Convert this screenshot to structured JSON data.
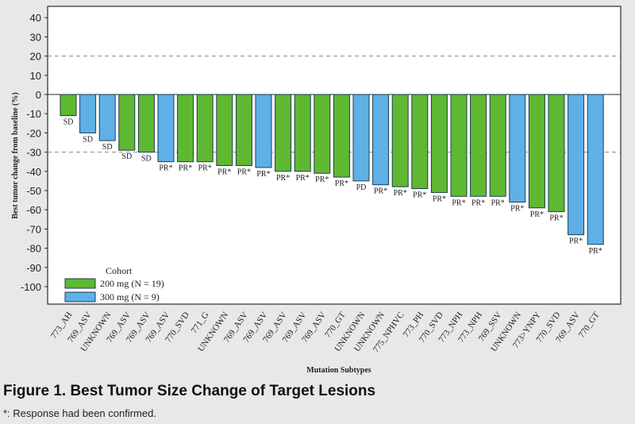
{
  "figure": {
    "title": "Figure 1. Best Tumor Size Change of Target Lesions",
    "note": "*: Response had been confirmed."
  },
  "chart_data": {
    "type": "bar",
    "title": "",
    "xlabel": "Mutation Subtypes",
    "ylabel": "Best tumor change from baseline (%)",
    "ylim": [
      -100,
      40
    ],
    "yticks": [
      40,
      30,
      20,
      10,
      0,
      -10,
      -20,
      -30,
      -40,
      -50,
      -60,
      -70,
      -80,
      -90,
      -100
    ],
    "reference_lines": [
      20,
      -30
    ],
    "grid": false,
    "legend": {
      "title": "Cohort",
      "placement": "bottom-left",
      "entries": [
        {
          "label": "200 mg (N = 19)",
          "color": "#5fb832"
        },
        {
          "label": "300 mg (N = 9)",
          "color": "#5eb0e6"
        }
      ]
    },
    "categories": [
      "773_AH",
      "769_ASV",
      "UNKNOWN",
      "769_ASV",
      "769_ASV",
      "769_ASV",
      "770_SVD",
      "771_G",
      "UNKNOWN",
      "769_ASV",
      "769_ASV",
      "769_ASV",
      "769_ASV",
      "769_ASV",
      "770_GT",
      "UNKNOWN",
      "UNKNOWN",
      "775_NPHVC",
      "773_PH",
      "770_SVD",
      "773_NPH",
      "773_NPH",
      "769_SSV",
      "UNKNOWN",
      "773>YNPY",
      "770_SVD",
      "769_ASV",
      "770_GT"
    ],
    "values": [
      -11,
      -20,
      -24,
      -29,
      -30,
      -35,
      -35,
      -35,
      -37,
      -37,
      -38,
      -40,
      -40,
      -41,
      -43,
      -45,
      -47,
      -48,
      -49,
      -51,
      -53,
      -53,
      -53,
      -56,
      -59,
      -61,
      -73,
      -78
    ],
    "cohort": [
      "200 mg",
      "300 mg",
      "300 mg",
      "200 mg",
      "200 mg",
      "300 mg",
      "200 mg",
      "200 mg",
      "200 mg",
      "200 mg",
      "300 mg",
      "200 mg",
      "200 mg",
      "200 mg",
      "200 mg",
      "300 mg",
      "300 mg",
      "200 mg",
      "200 mg",
      "200 mg",
      "200 mg",
      "200 mg",
      "200 mg",
      "300 mg",
      "200 mg",
      "200 mg",
      "300 mg",
      "300 mg"
    ],
    "response_labels": [
      "SD",
      "SD",
      "SD",
      "SD",
      "SD",
      "PR*",
      "PR*",
      "PR*",
      "PR*",
      "PR*",
      "PR*",
      "PR*",
      "PR*",
      "PR*",
      "PR*",
      "PD",
      "PR*",
      "PR*",
      "PR*",
      "PR*",
      "PR*",
      "PR*",
      "PR*",
      "PR*",
      "PR*",
      "PR*",
      "PR*",
      "PR*"
    ],
    "colors": {
      "200 mg": "#5fb832",
      "300 mg": "#5eb0e6"
    }
  }
}
